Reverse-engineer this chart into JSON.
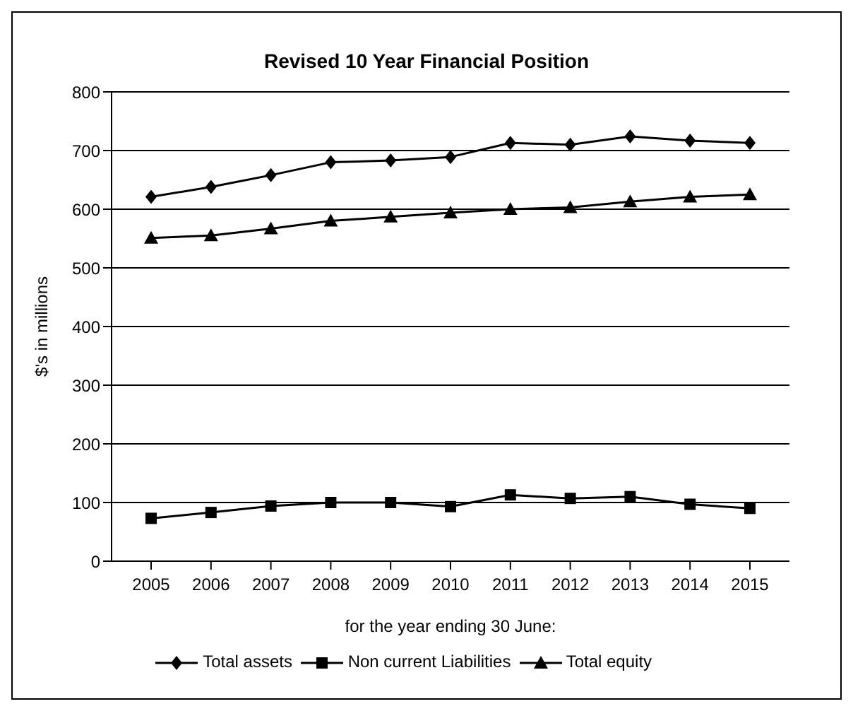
{
  "chart_data": {
    "type": "line",
    "title": "Revised 10 Year  Financial Position",
    "xlabel": "for the year ending 30 June:",
    "ylabel": "$'s in millions",
    "categories": [
      "2005",
      "2006",
      "2007",
      "2008",
      "2009",
      "2010",
      "2011",
      "2012",
      "2013",
      "2014",
      "2015"
    ],
    "series": [
      {
        "name": "Total assets",
        "color": "#000000",
        "marker": "diamond",
        "values": [
          621,
          638,
          658,
          680,
          683,
          689,
          713,
          710,
          724,
          717,
          713
        ]
      },
      {
        "name": "Non current Liabilities",
        "color": "#000000",
        "marker": "square",
        "values": [
          73,
          83,
          94,
          100,
          100,
          93,
          113,
          107,
          110,
          97,
          90
        ]
      },
      {
        "name": "Total equity",
        "color": "#000000",
        "marker": "triangle",
        "values": [
          551,
          555,
          567,
          580,
          587,
          594,
          600,
          603,
          613,
          621,
          625
        ]
      }
    ],
    "ylim": [
      0,
      800
    ],
    "yticks": [
      0,
      100,
      200,
      300,
      400,
      500,
      600,
      700,
      800
    ],
    "grid": "y",
    "legend": "bottom",
    "line_style": "solid"
  }
}
